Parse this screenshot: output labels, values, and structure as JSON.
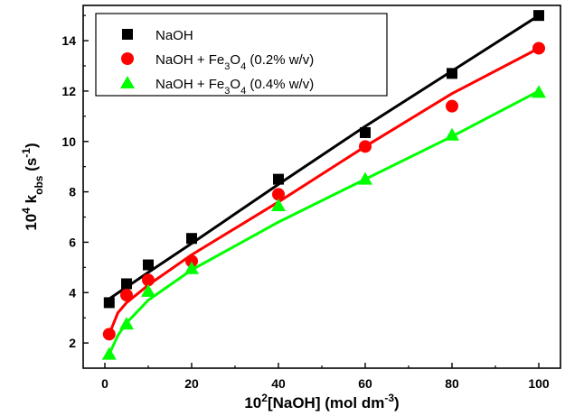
{
  "chart_data": {
    "type": "scatter",
    "xlabel": {
      "main": "10",
      "sup": "2",
      "rest": "[NaOH] (mol dm",
      "unitsup": "-3",
      "end": ")"
    },
    "ylabel": {
      "main": "10",
      "sup": "4",
      "k": " k",
      "sub": "obs",
      "rest": " (s",
      "unitsup": "-1",
      "end": ")"
    },
    "xlim": [
      -5,
      105
    ],
    "ylim": [
      1,
      15.4
    ],
    "xticks": [
      0,
      20,
      40,
      60,
      80,
      100
    ],
    "yticks": [
      2,
      4,
      6,
      8,
      10,
      12,
      14
    ],
    "grid": false,
    "legend_position": "top-left",
    "series": [
      {
        "legend": {
          "pre": "NaOH",
          "formula_sub1": "",
          "formula_sub2": "",
          "post": ""
        },
        "marker": "square",
        "color": "#000000",
        "x": [
          1,
          5,
          10,
          20,
          40,
          60,
          80,
          100
        ],
        "y": [
          3.6,
          4.35,
          5.1,
          6.15,
          8.5,
          10.35,
          12.7,
          15.0
        ],
        "fit": [
          [
            1,
            3.75
          ],
          [
            10,
            4.8
          ],
          [
            20,
            5.95
          ],
          [
            40,
            8.3
          ],
          [
            60,
            10.6
          ],
          [
            80,
            12.8
          ],
          [
            100,
            15.0
          ]
        ]
      },
      {
        "legend": {
          "pre": "NaOH + Fe",
          "formula_sub1": "3",
          "mid": "O",
          "formula_sub2": "4",
          "post": " (0.2% w/v)"
        },
        "marker": "circle",
        "color": "#ff0000",
        "x": [
          1,
          5,
          10,
          20,
          40,
          60,
          80,
          100
        ],
        "y": [
          2.35,
          3.9,
          4.5,
          5.25,
          7.9,
          9.8,
          11.4,
          13.7
        ],
        "fit": [
          [
            1,
            2.35
          ],
          [
            3,
            3.2
          ],
          [
            5,
            3.6
          ],
          [
            10,
            4.3
          ],
          [
            20,
            5.5
          ],
          [
            40,
            7.6
          ],
          [
            60,
            9.8
          ],
          [
            80,
            11.9
          ],
          [
            100,
            13.7
          ]
        ]
      },
      {
        "legend": {
          "pre": "NaOH + Fe",
          "formula_sub1": "3",
          "mid": "O",
          "formula_sub2": "4",
          "post": " (0.4% w/v)"
        },
        "marker": "triangle",
        "color": "#00ff00",
        "x": [
          1,
          5,
          10,
          20,
          40,
          60,
          80,
          100
        ],
        "y": [
          1.55,
          2.75,
          4.05,
          4.95,
          7.45,
          8.5,
          10.25,
          11.95
        ],
        "fit": [
          [
            1,
            1.55
          ],
          [
            3,
            2.3
          ],
          [
            5,
            2.8
          ],
          [
            10,
            3.7
          ],
          [
            20,
            4.9
          ],
          [
            40,
            6.8
          ],
          [
            60,
            8.5
          ],
          [
            80,
            10.2
          ],
          [
            100,
            12.0
          ]
        ]
      }
    ]
  }
}
